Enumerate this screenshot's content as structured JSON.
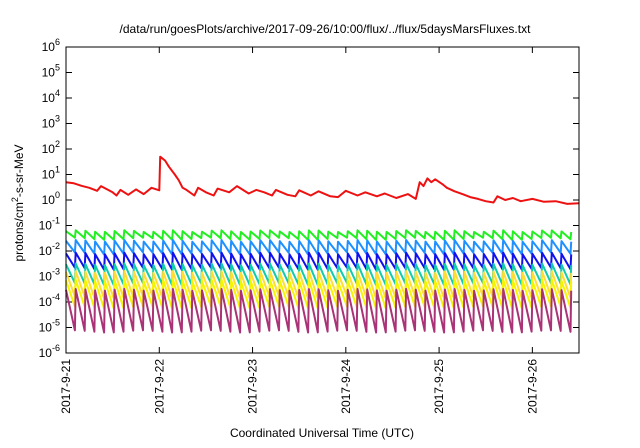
{
  "chart_data": {
    "type": "line",
    "title": "/data/run/goesPlots/archive/2017-09-26/10:00/flux/../flux/5daysMarsFluxes.txt",
    "xlabel": "Coordinated Universal Time (UTC)",
    "ylabel": "protons/cm2-s-sr-MeV",
    "ylabel_parts": {
      "pre": "protons/cm",
      "sup": "2",
      "post": "-s-sr-MeV"
    },
    "x_range": [
      "2017-09-21 00:00",
      "2017-09-26 12:00"
    ],
    "y_scale": "log",
    "ylim": [
      1e-06,
      1000000.0
    ],
    "x_ticks": [
      {
        "label": "2017-9-21",
        "day": 0
      },
      {
        "label": "2017-9-22",
        "day": 1
      },
      {
        "label": "2017-9-23",
        "day": 2
      },
      {
        "label": "2017-9-24",
        "day": 3
      },
      {
        "label": "2017-9-25",
        "day": 4
      },
      {
        "label": "2017-9-26",
        "day": 5
      }
    ],
    "y_ticks": [
      {
        "base": "10",
        "exp": "-6",
        "value": -6
      },
      {
        "base": "10",
        "exp": "-5",
        "value": -5
      },
      {
        "base": "10",
        "exp": "-4",
        "value": -4
      },
      {
        "base": "10",
        "exp": "-3",
        "value": -3
      },
      {
        "base": "10",
        "exp": "-2",
        "value": -2
      },
      {
        "base": "10",
        "exp": "-1",
        "value": -1
      },
      {
        "base": "10",
        "exp": "0",
        "value": 0
      },
      {
        "base": "10",
        "exp": "1",
        "value": 1
      },
      {
        "base": "10",
        "exp": "2",
        "value": 2
      },
      {
        "base": "10",
        "exp": "3",
        "value": 3
      },
      {
        "base": "10",
        "exp": "4",
        "value": 4
      },
      {
        "base": "10",
        "exp": "5",
        "value": 5
      },
      {
        "base": "10",
        "exp": "6",
        "value": 6
      }
    ],
    "grid": false,
    "legend": "none",
    "series": [
      {
        "color": "#ee1111",
        "pattern": "flat",
        "points": [
          [
            "2017-09-21 00:00",
            5.0
          ],
          [
            "2017-09-21 02:00",
            4.5
          ],
          [
            "2017-09-21 04:00",
            3.6
          ],
          [
            "2017-09-21 06:00",
            3.0
          ],
          [
            "2017-09-21 08:00",
            2.3
          ],
          [
            "2017-09-21 09:00",
            3.5
          ],
          [
            "2017-09-21 12:00",
            2.0
          ],
          [
            "2017-09-21 13:00",
            1.5
          ],
          [
            "2017-09-21 14:00",
            2.5
          ],
          [
            "2017-09-21 16:00",
            1.6
          ],
          [
            "2017-09-21 18:00",
            2.6
          ],
          [
            "2017-09-21 20:00",
            1.7
          ],
          [
            "2017-09-21 22:00",
            3.0
          ],
          [
            "2017-09-22 00:00",
            2.4
          ],
          [
            "2017-09-22 00:15",
            50
          ],
          [
            "2017-09-22 01:30",
            35
          ],
          [
            "2017-09-22 02:30",
            20
          ],
          [
            "2017-09-22 04:00",
            10
          ],
          [
            "2017-09-22 05:00",
            6
          ],
          [
            "2017-09-22 06:00",
            3
          ],
          [
            "2017-09-22 07:00",
            2.5
          ],
          [
            "2017-09-22 09:00",
            1.5
          ],
          [
            "2017-09-22 10:00",
            3.0
          ],
          [
            "2017-09-22 12:00",
            2.0
          ],
          [
            "2017-09-22 14:00",
            1.5
          ],
          [
            "2017-09-22 15:00",
            2.8
          ],
          [
            "2017-09-22 18:00",
            2.0
          ],
          [
            "2017-09-22 20:00",
            3.5
          ],
          [
            "2017-09-22 23:00",
            1.8
          ],
          [
            "2017-09-23 01:00",
            2.5
          ],
          [
            "2017-09-23 03:00",
            2.0
          ],
          [
            "2017-09-23 05:00",
            1.5
          ],
          [
            "2017-09-23 06:00",
            2.5
          ],
          [
            "2017-09-23 09:00",
            1.6
          ],
          [
            "2017-09-23 11:00",
            1.4
          ],
          [
            "2017-09-23 12:00",
            2.4
          ],
          [
            "2017-09-23 15:00",
            1.5
          ],
          [
            "2017-09-23 17:00",
            2.2
          ],
          [
            "2017-09-23 20:00",
            1.4
          ],
          [
            "2017-09-23 22:00",
            1.3
          ],
          [
            "2017-09-24 00:00",
            2.3
          ],
          [
            "2017-09-24 03:00",
            1.5
          ],
          [
            "2017-09-24 05:00",
            2.0
          ],
          [
            "2017-09-24 08:00",
            1.4
          ],
          [
            "2017-09-24 10:00",
            1.8
          ],
          [
            "2017-09-24 13:00",
            1.2
          ],
          [
            "2017-09-24 16:00",
            1.7
          ],
          [
            "2017-09-24 18:00",
            1.1
          ],
          [
            "2017-09-24 19:00",
            5.0
          ],
          [
            "2017-09-24 20:00",
            3.5
          ],
          [
            "2017-09-24 21:00",
            7.0
          ],
          [
            "2017-09-24 22:00",
            5.0
          ],
          [
            "2017-09-24 23:00",
            6.5
          ],
          [
            "2017-09-25 01:00",
            4.0
          ],
          [
            "2017-09-25 02:00",
            3.0
          ],
          [
            "2017-09-25 04:00",
            2.2
          ],
          [
            "2017-09-25 06:00",
            1.7
          ],
          [
            "2017-09-25 08:00",
            1.3
          ],
          [
            "2017-09-25 10:00",
            1.1
          ],
          [
            "2017-09-25 12:00",
            0.9
          ],
          [
            "2017-09-25 14:00",
            0.8
          ],
          [
            "2017-09-25 15:00",
            1.4
          ],
          [
            "2017-09-25 17:00",
            1.0
          ],
          [
            "2017-09-25 19:00",
            1.2
          ],
          [
            "2017-09-25 21:00",
            0.9
          ],
          [
            "2017-09-26 00:00",
            1.1
          ],
          [
            "2017-09-26 03:00",
            0.85
          ],
          [
            "2017-09-26 06:00",
            0.9
          ],
          [
            "2017-09-26 09:00",
            0.7
          ],
          [
            "2017-09-26 12:00",
            0.75
          ]
        ]
      },
      {
        "color": "#22ee22",
        "pattern": "sawtooth",
        "peak": 0.06,
        "trough": 0.03,
        "drop_peak": 0.045
      },
      {
        "color": "#1e90ff",
        "pattern": "sawtooth",
        "peak": 0.025,
        "trough": 0.008,
        "drop_peak": 0.015
      },
      {
        "color": "#1111ee",
        "pattern": "sawtooth",
        "peak": 0.008,
        "trough": 0.002,
        "drop_peak": 0.005
      },
      {
        "color": "#11ccaa",
        "pattern": "sawtooth",
        "peak": 0.003,
        "trough": 0.0005,
        "drop_peak": 0.0015
      },
      {
        "color": "#ffdd33",
        "pattern": "sawtooth",
        "peak": 0.0015,
        "trough": 0.00015,
        "drop_peak": 0.0008
      },
      {
        "color": "#f5f500",
        "pattern": "sawtooth",
        "peak": 0.0007,
        "trough": 6e-05,
        "drop_peak": 0.0004
      },
      {
        "color": "#aa3377",
        "pattern": "sawtooth",
        "peak": 0.0003,
        "trough": 7e-06,
        "drop_peak": 0.0001
      }
    ]
  }
}
